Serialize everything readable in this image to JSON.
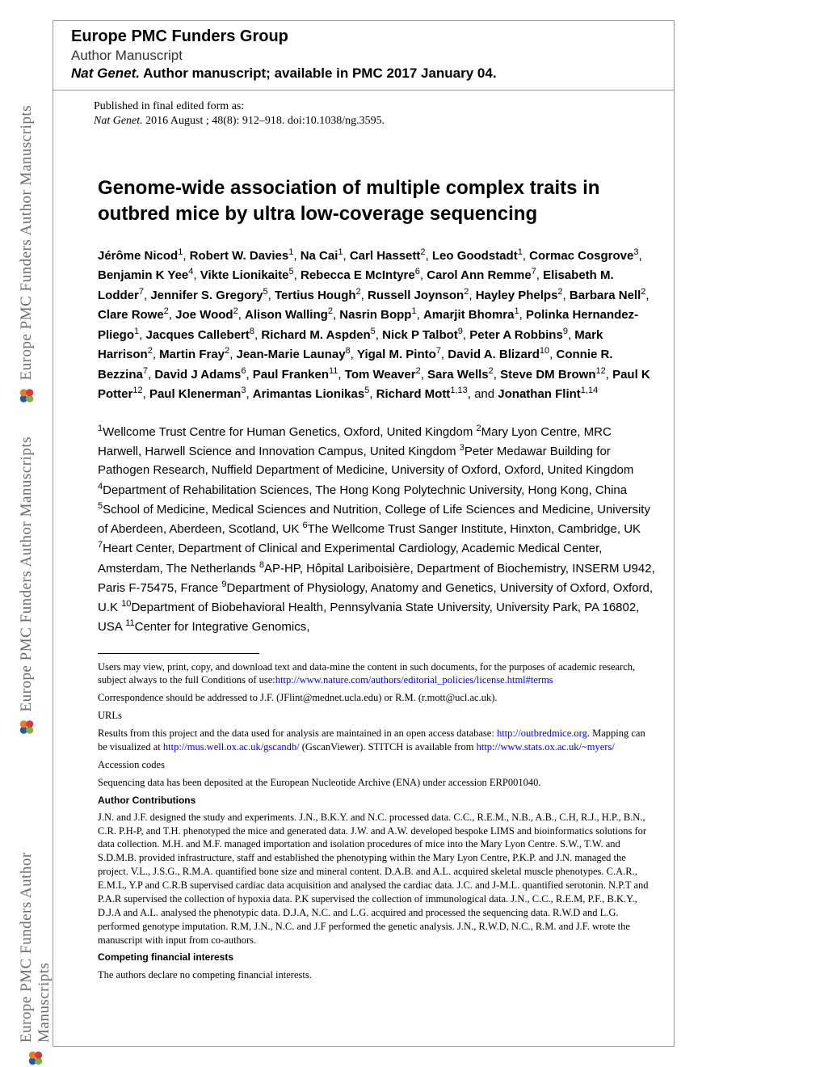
{
  "header": {
    "group": "Europe PMC Funders Group",
    "subtitle": "Author Manuscript",
    "journal": "Nat Genet.",
    "availability": " Author manuscript; available in PMC 2017 January 04."
  },
  "published": {
    "line1": "Published in final edited form as:",
    "journal": "Nat Genet.",
    "cite": " 2016 August ; 48(8): 912–918. doi:10.1038/ng.3595."
  },
  "title": "Genome-wide association of multiple complex traits in outbred mice by ultra low-coverage sequencing",
  "authors_html": "JN",
  "authors": [
    {
      "name": "Jérôme Nicod",
      "aff": "1"
    },
    {
      "name": "Robert W. Davies",
      "aff": "1"
    },
    {
      "name": "Na Cai",
      "aff": "1"
    },
    {
      "name": "Carl Hassett",
      "aff": "2"
    },
    {
      "name": "Leo Goodstadt",
      "aff": "1"
    },
    {
      "name": "Cormac Cosgrove",
      "aff": "3"
    },
    {
      "name": "Benjamin K Yee",
      "aff": "4"
    },
    {
      "name": "Vikte Lionikaite",
      "aff": "5"
    },
    {
      "name": "Rebecca E McIntyre",
      "aff": "6"
    },
    {
      "name": "Carol Ann Remme",
      "aff": "7"
    },
    {
      "name": "Elisabeth M. Lodder",
      "aff": "7"
    },
    {
      "name": "Jennifer S. Gregory",
      "aff": "5"
    },
    {
      "name": "Tertius Hough",
      "aff": "2"
    },
    {
      "name": "Russell Joynson",
      "aff": "2"
    },
    {
      "name": "Hayley Phelps",
      "aff": "2"
    },
    {
      "name": "Barbara Nell",
      "aff": "2"
    },
    {
      "name": "Clare Rowe",
      "aff": "2"
    },
    {
      "name": "Joe Wood",
      "aff": "2"
    },
    {
      "name": "Alison Walling",
      "aff": "2"
    },
    {
      "name": "Nasrin Bopp",
      "aff": "1"
    },
    {
      "name": "Amarjit Bhomra",
      "aff": "1"
    },
    {
      "name": "Polinka Hernandez-Pliego",
      "aff": "1"
    },
    {
      "name": "Jacques Callebert",
      "aff": "8"
    },
    {
      "name": "Richard M. Aspden",
      "aff": "5"
    },
    {
      "name": "Nick P Talbot",
      "aff": "9"
    },
    {
      "name": "Peter A Robbins",
      "aff": "9"
    },
    {
      "name": "Mark Harrison",
      "aff": "2"
    },
    {
      "name": "Martin Fray",
      "aff": "2"
    },
    {
      "name": "Jean-Marie Launay",
      "aff": "8"
    },
    {
      "name": "Yigal M. Pinto",
      "aff": "7"
    },
    {
      "name": "David A. Blizard",
      "aff": "10"
    },
    {
      "name": "Connie R. Bezzina",
      "aff": "7"
    },
    {
      "name": "David J Adams",
      "aff": "6"
    },
    {
      "name": "Paul Franken",
      "aff": "11"
    },
    {
      "name": "Tom Weaver",
      "aff": "2"
    },
    {
      "name": "Sara Wells",
      "aff": "2"
    },
    {
      "name": "Steve DM Brown",
      "aff": "12"
    },
    {
      "name": "Paul K Potter",
      "aff": "12"
    },
    {
      "name": "Paul Klenerman",
      "aff": "3"
    },
    {
      "name": "Arimantas Lionikas",
      "aff": "5"
    },
    {
      "name": "Richard Mott",
      "aff": "1,13"
    },
    {
      "name": "Jonathan Flint",
      "aff": "1,14",
      "last": true
    }
  ],
  "affiliations": [
    {
      "n": "1",
      "text": "Wellcome Trust Centre for Human Genetics, Oxford, United Kingdom "
    },
    {
      "n": "2",
      "text": "Mary Lyon Centre, MRC Harwell, Harwell Science and Innovation Campus, United Kingdom "
    },
    {
      "n": "3",
      "text": "Peter Medawar Building for Pathogen Research, Nuffield Department of Medicine, University of Oxford, Oxford, United Kingdom "
    },
    {
      "n": "4",
      "text": "Department of Rehabilitation Sciences, The Hong Kong Polytechnic University, Hong Kong, China "
    },
    {
      "n": "5",
      "text": "School of Medicine, Medical Sciences and Nutrition, College of Life Sciences and Medicine, University of Aberdeen, Aberdeen, Scotland, UK "
    },
    {
      "n": "6",
      "text": "The Wellcome Trust Sanger Institute, Hinxton, Cambridge, UK "
    },
    {
      "n": "7",
      "text": "Heart Center, Department of Clinical and Experimental Cardiology, Academic Medical Center, Amsterdam, The Netherlands "
    },
    {
      "n": "8",
      "text": "AP-HP, Hôpital Lariboisière, Department of Biochemistry, INSERM U942, Paris F-75475, France "
    },
    {
      "n": "9",
      "text": "Department of Physiology, Anatomy and Genetics, University of Oxford, Oxford, U.K "
    },
    {
      "n": "10",
      "text": "Department of Biobehavioral Health, Pennsylvania State University, University Park, PA 16802, USA "
    },
    {
      "n": "11",
      "text": "Center for Integrative Genomics,"
    }
  ],
  "footnotes": {
    "usage1": "Users may view, print, copy, and download text and data-mine the content in such documents, for the purposes of academic research, subject always to the full Conditions of use:",
    "usage_link": "http://www.nature.com/authors/editorial_policies/license.html#terms",
    "correspondence": "Correspondence should be addressed to J.F. (JFlint@mednet.ucla.edu) or R.M. (r.mott@ucl.ac.uk).",
    "urls_heading": "URLs",
    "urls_text1": "Results from this project and the data used for analysis are maintained in an open access database: ",
    "urls_link1": "http://outbredmice.org",
    "urls_text2": ". Mapping can be visualized at ",
    "urls_link2": "http://mus.well.ox.ac.uk/gscandb/",
    "urls_text3": " (GscanViewer). STITCH is available from ",
    "urls_link3": "http://www.stats.ox.ac.uk/~myers/",
    "accession_heading": "Accession codes",
    "accession_text": "Sequencing data has been deposited at the European Nucleotide Archive (ENA) under accession ERP001040.",
    "contrib_heading": "Author Contributions",
    "contrib_text": "J.N. and J.F. designed the study and experiments. J.N., B.K.Y. and N.C. processed data. C.C., R.E.M., N.B., A.B., C.H, R.J., H.P., B.N., C.R. P.H-P, and T.H. phenotyped the mice and generated data. J.W. and A.W. developed bespoke LIMS and bioinformatics solutions for data collection. M.H. and M.F. managed importation and isolation procedures of mice into the Mary Lyon Centre. S.W., T.W. and S.D.M.B. provided infrastructure, staff and established the phenotyping within the Mary Lyon Centre, P.K.P. and J.N. managed the project. V.L., J.S.G., R.M.A. quantified bone size and mineral content. D.A.B. and A.L. acquired skeletal muscle phenotypes. C.A.R., E.M.L, Y.P and C.R.B supervised cardiac data acquisition and analysed the cardiac data. J.C. and J-M.L. quantified serotonin. N.P.T and P.A.R supervised the collection of hypoxia data. P.K supervised the collection of immunological data. J.N., C.C., R.E.M, P.F., B.K.Y., D.J.A and A.L. analysed the phenotypic data. D.J.A, N.C. and L.G. acquired and processed the sequencing data. R.W.D and L.G. performed genotype imputation. R.M, J.N., N.C. and J.F performed the genetic analysis. J.N., R.W.D, N.C., R.M. and J.F. wrote the manuscript with input from co-authors.",
    "competing_heading": "Competing financial interests",
    "competing_text": "The authors declare no competing financial interests."
  },
  "watermark": {
    "text": "Europe PMC Funders Author Manuscripts",
    "logo_colors": {
      "blue": "#2159a6",
      "orange": "#e77c22",
      "red": "#d13b3b",
      "green": "#7fb241"
    }
  }
}
